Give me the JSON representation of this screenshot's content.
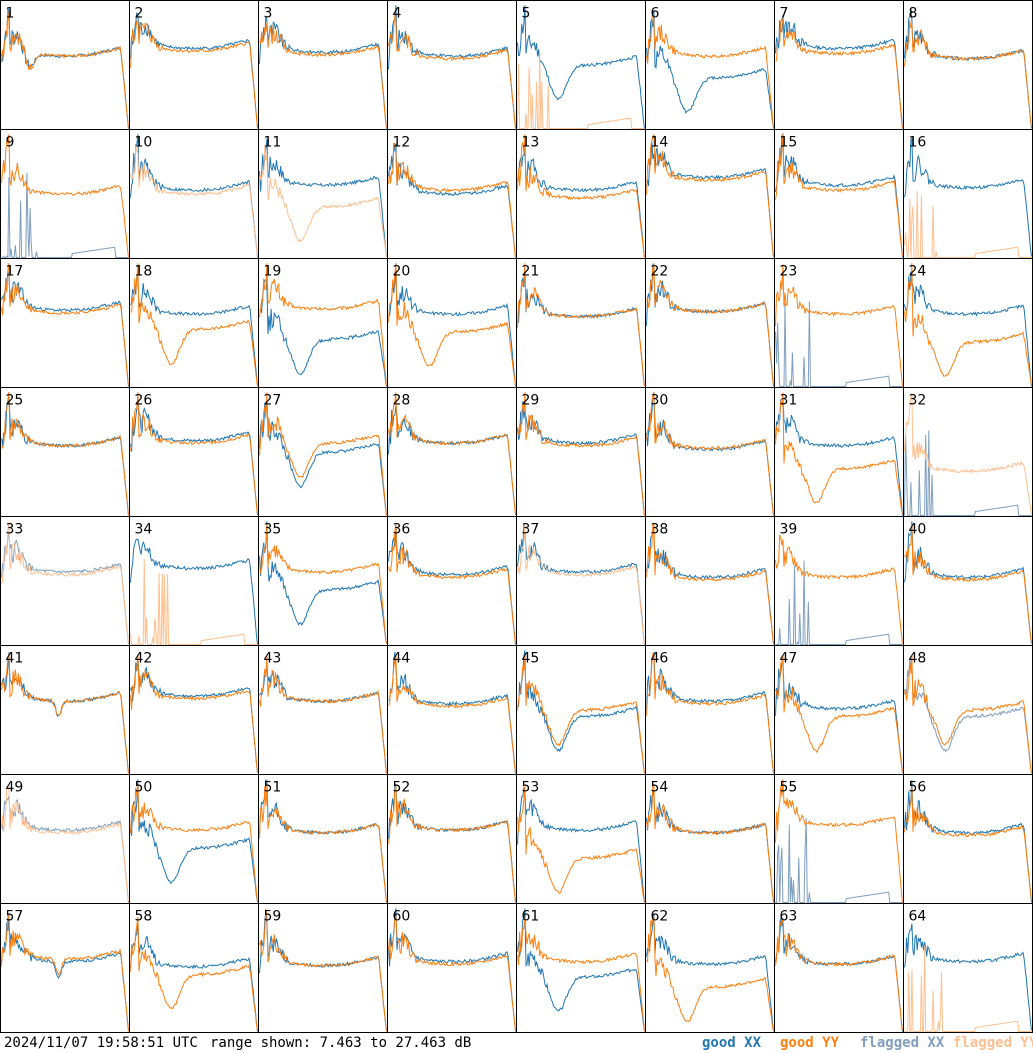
{
  "footer": {
    "timestamp": "2024/11/07 19:58:51 UTC",
    "range_text": "range shown: 7.463 to 27.463 dB"
  },
  "legend": {
    "good_xx": "good XX",
    "good_yy": "good YY",
    "flagged_xx": "flagged XX",
    "flagged_yy": "flagged YY"
  },
  "colors": {
    "good_xx": "#1f77b4",
    "good_yy": "#ff7f0e",
    "flagged_xx": "#7f9fbf",
    "flagged_yy": "#ffbf8f"
  },
  "chart_data": {
    "type": "line",
    "layout": "8x8 small multiples",
    "x_range": "channel index",
    "ylim_db": [
      7.463,
      27.463
    ],
    "panel_labels": [
      "1",
      "2",
      "3",
      "4",
      "5",
      "6",
      "7",
      "8",
      "9",
      "10",
      "11",
      "12",
      "13",
      "14",
      "15",
      "16",
      "17",
      "18",
      "19",
      "20",
      "21",
      "22",
      "23",
      "24",
      "25",
      "26",
      "27",
      "28",
      "29",
      "30",
      "31",
      "32",
      "33",
      "34",
      "35",
      "36",
      "37",
      "38",
      "39",
      "40",
      "41",
      "42",
      "43",
      "44",
      "45",
      "46",
      "47",
      "48",
      "49",
      "50",
      "51",
      "52",
      "53",
      "54",
      "55",
      "56",
      "57",
      "58",
      "59",
      "60",
      "61",
      "62",
      "63",
      "64"
    ],
    "panels": [
      {
        "label": "1",
        "xx": "good",
        "yy": "good",
        "shape": "dip",
        "xx_level": 0.62,
        "yy_level": 0.62
      },
      {
        "label": "2",
        "xx": "good",
        "yy": "good",
        "shape": "normal",
        "xx_level": 0.68,
        "yy_level": 0.66
      },
      {
        "label": "3",
        "xx": "good",
        "yy": "good",
        "shape": "normal",
        "xx_level": 0.65,
        "yy_level": 0.63
      },
      {
        "label": "4",
        "xx": "good",
        "yy": "good",
        "shape": "normal",
        "xx_level": 0.62,
        "yy_level": 0.6
      },
      {
        "label": "5",
        "xx": "good",
        "yy": "flagged",
        "shape": "deep_dip",
        "xx_level": 0.55,
        "yy_level": 0.0
      },
      {
        "label": "6",
        "xx": "good",
        "yy": "good",
        "shape": "split_low_xx",
        "xx_level": 0.45,
        "yy_level": 0.62
      },
      {
        "label": "7",
        "xx": "good",
        "yy": "good",
        "shape": "normal",
        "xx_level": 0.68,
        "yy_level": 0.64
      },
      {
        "label": "8",
        "xx": "good",
        "yy": "good",
        "shape": "normal",
        "xx_level": 0.6,
        "yy_level": 0.6
      },
      {
        "label": "9",
        "xx": "flagged",
        "yy": "good",
        "shape": "xx_dead",
        "xx_level": 0.0,
        "yy_level": 0.55
      },
      {
        "label": "10",
        "xx": "good",
        "yy": "flagged",
        "shape": "normal",
        "xx_level": 0.58,
        "yy_level": 0.55
      },
      {
        "label": "11",
        "xx": "good",
        "yy": "flagged",
        "shape": "split_low_yy",
        "xx_level": 0.62,
        "yy_level": 0.45
      },
      {
        "label": "12",
        "xx": "good",
        "yy": "good",
        "shape": "normal",
        "xx_level": 0.55,
        "yy_level": 0.58
      },
      {
        "label": "13",
        "xx": "good",
        "yy": "good",
        "shape": "normal",
        "xx_level": 0.58,
        "yy_level": 0.52
      },
      {
        "label": "14",
        "xx": "good",
        "yy": "good",
        "shape": "normal",
        "xx_level": 0.68,
        "yy_level": 0.66
      },
      {
        "label": "15",
        "xx": "good",
        "yy": "good",
        "shape": "normal",
        "xx_level": 0.62,
        "yy_level": 0.58
      },
      {
        "label": "16",
        "xx": "good",
        "yy": "flagged",
        "shape": "xx_only",
        "xx_level": 0.6,
        "yy_level": 0.0
      },
      {
        "label": "17",
        "xx": "good",
        "yy": "good",
        "shape": "normal",
        "xx_level": 0.65,
        "yy_level": 0.63
      },
      {
        "label": "18",
        "xx": "good",
        "yy": "good",
        "shape": "split_low_yy",
        "xx_level": 0.62,
        "yy_level": 0.5
      },
      {
        "label": "19",
        "xx": "good",
        "yy": "good",
        "shape": "split_low_xx",
        "xx_level": 0.42,
        "yy_level": 0.66
      },
      {
        "label": "20",
        "xx": "good",
        "yy": "good",
        "shape": "split_low_yy",
        "xx_level": 0.62,
        "yy_level": 0.48
      },
      {
        "label": "21",
        "xx": "good",
        "yy": "good",
        "shape": "normal",
        "xx_level": 0.6,
        "yy_level": 0.6
      },
      {
        "label": "22",
        "xx": "good",
        "yy": "good",
        "shape": "normal",
        "xx_level": 0.64,
        "yy_level": 0.64
      },
      {
        "label": "23",
        "xx": "flagged",
        "yy": "good",
        "shape": "xx_dead",
        "xx_level": 0.0,
        "yy_level": 0.62
      },
      {
        "label": "24",
        "xx": "good",
        "yy": "good",
        "shape": "split_low_yy",
        "xx_level": 0.62,
        "yy_level": 0.4
      },
      {
        "label": "25",
        "xx": "good",
        "yy": "good",
        "shape": "normal",
        "xx_level": 0.6,
        "yy_level": 0.6
      },
      {
        "label": "26",
        "xx": "good",
        "yy": "good",
        "shape": "normal",
        "xx_level": 0.64,
        "yy_level": 0.62
      },
      {
        "label": "27",
        "xx": "good",
        "yy": "good",
        "shape": "deep_dip",
        "xx_level": 0.55,
        "yy_level": 0.62
      },
      {
        "label": "28",
        "xx": "good",
        "yy": "good",
        "shape": "normal",
        "xx_level": 0.62,
        "yy_level": 0.62
      },
      {
        "label": "29",
        "xx": "good",
        "yy": "good",
        "shape": "normal",
        "xx_level": 0.62,
        "yy_level": 0.6
      },
      {
        "label": "30",
        "xx": "good",
        "yy": "good",
        "shape": "normal",
        "xx_level": 0.57,
        "yy_level": 0.58
      },
      {
        "label": "31",
        "xx": "good",
        "yy": "good",
        "shape": "split_low_yy",
        "xx_level": 0.6,
        "yy_level": 0.42
      },
      {
        "label": "32",
        "xx": "flagged",
        "yy": "flagged",
        "shape": "yy_only",
        "xx_level": 0.0,
        "yy_level": 0.4
      },
      {
        "label": "33",
        "xx": "flagged",
        "yy": "flagged",
        "shape": "normal",
        "xx_level": 0.62,
        "yy_level": 0.6
      },
      {
        "label": "34",
        "xx": "good",
        "yy": "flagged",
        "shape": "xx_only",
        "xx_level": 0.65,
        "yy_level": 0.0
      },
      {
        "label": "35",
        "xx": "good",
        "yy": "good",
        "shape": "split_low_xx",
        "xx_level": 0.48,
        "yy_level": 0.62
      },
      {
        "label": "36",
        "xx": "good",
        "yy": "good",
        "shape": "normal",
        "xx_level": 0.6,
        "yy_level": 0.58
      },
      {
        "label": "37",
        "xx": "good",
        "yy": "flagged",
        "shape": "normal",
        "xx_level": 0.62,
        "yy_level": 0.6
      },
      {
        "label": "38",
        "xx": "good",
        "yy": "good",
        "shape": "normal",
        "xx_level": 0.58,
        "yy_level": 0.56
      },
      {
        "label": "39",
        "xx": "flagged",
        "yy": "good",
        "shape": "xx_dead",
        "xx_level": 0.0,
        "yy_level": 0.58
      },
      {
        "label": "40",
        "xx": "good",
        "yy": "good",
        "shape": "normal",
        "xx_level": 0.58,
        "yy_level": 0.56
      },
      {
        "label": "41",
        "xx": "good",
        "yy": "good",
        "shape": "notch",
        "xx_level": 0.62,
        "yy_level": 0.62
      },
      {
        "label": "42",
        "xx": "good",
        "yy": "good",
        "shape": "normal",
        "xx_level": 0.66,
        "yy_level": 0.64
      },
      {
        "label": "43",
        "xx": "good",
        "yy": "good",
        "shape": "normal",
        "xx_level": 0.62,
        "yy_level": 0.62
      },
      {
        "label": "44",
        "xx": "good",
        "yy": "good",
        "shape": "normal",
        "xx_level": 0.6,
        "yy_level": 0.58
      },
      {
        "label": "45",
        "xx": "good",
        "yy": "good",
        "shape": "deep_dip",
        "xx_level": 0.5,
        "yy_level": 0.55
      },
      {
        "label": "46",
        "xx": "good",
        "yy": "good",
        "shape": "normal",
        "xx_level": 0.62,
        "yy_level": 0.6
      },
      {
        "label": "47",
        "xx": "good",
        "yy": "good",
        "shape": "split_low_yy",
        "xx_level": 0.56,
        "yy_level": 0.5
      },
      {
        "label": "48",
        "xx": "flagged",
        "yy": "good",
        "shape": "deep_dip",
        "xx_level": 0.5,
        "yy_level": 0.55
      },
      {
        "label": "49",
        "xx": "flagged",
        "yy": "flagged",
        "shape": "normal",
        "xx_level": 0.62,
        "yy_level": 0.6
      },
      {
        "label": "50",
        "xx": "good",
        "yy": "good",
        "shape": "split_low_xx",
        "xx_level": 0.48,
        "yy_level": 0.62
      },
      {
        "label": "51",
        "xx": "good",
        "yy": "good",
        "shape": "normal",
        "xx_level": 0.6,
        "yy_level": 0.6
      },
      {
        "label": "52",
        "xx": "good",
        "yy": "good",
        "shape": "normal",
        "xx_level": 0.62,
        "yy_level": 0.62
      },
      {
        "label": "53",
        "xx": "good",
        "yy": "good",
        "shape": "split_low_yy",
        "xx_level": 0.62,
        "yy_level": 0.4
      },
      {
        "label": "54",
        "xx": "good",
        "yy": "good",
        "shape": "normal",
        "xx_level": 0.6,
        "yy_level": 0.6
      },
      {
        "label": "55",
        "xx": "flagged",
        "yy": "good",
        "shape": "xx_dead",
        "xx_level": 0.0,
        "yy_level": 0.66
      },
      {
        "label": "56",
        "xx": "good",
        "yy": "good",
        "shape": "normal",
        "xx_level": 0.6,
        "yy_level": 0.58
      },
      {
        "label": "57",
        "xx": "good",
        "yy": "good",
        "shape": "notch",
        "xx_level": 0.6,
        "yy_level": 0.62
      },
      {
        "label": "58",
        "xx": "good",
        "yy": "good",
        "shape": "split_low_yy",
        "xx_level": 0.56,
        "yy_level": 0.5
      },
      {
        "label": "59",
        "xx": "good",
        "yy": "good",
        "shape": "normal",
        "xx_level": 0.57,
        "yy_level": 0.57
      },
      {
        "label": "60",
        "xx": "good",
        "yy": "good",
        "shape": "normal",
        "xx_level": 0.6,
        "yy_level": 0.58
      },
      {
        "label": "61",
        "xx": "good",
        "yy": "good",
        "shape": "split_low_xx",
        "xx_level": 0.48,
        "yy_level": 0.6
      },
      {
        "label": "62",
        "xx": "good",
        "yy": "good",
        "shape": "split_low_yy",
        "xx_level": 0.58,
        "yy_level": 0.4
      },
      {
        "label": "63",
        "xx": "good",
        "yy": "good",
        "shape": "normal",
        "xx_level": 0.58,
        "yy_level": 0.58
      },
      {
        "label": "64",
        "xx": "good",
        "yy": "flagged",
        "shape": "xx_only",
        "xx_level": 0.6,
        "yy_level": 0.0
      }
    ]
  }
}
